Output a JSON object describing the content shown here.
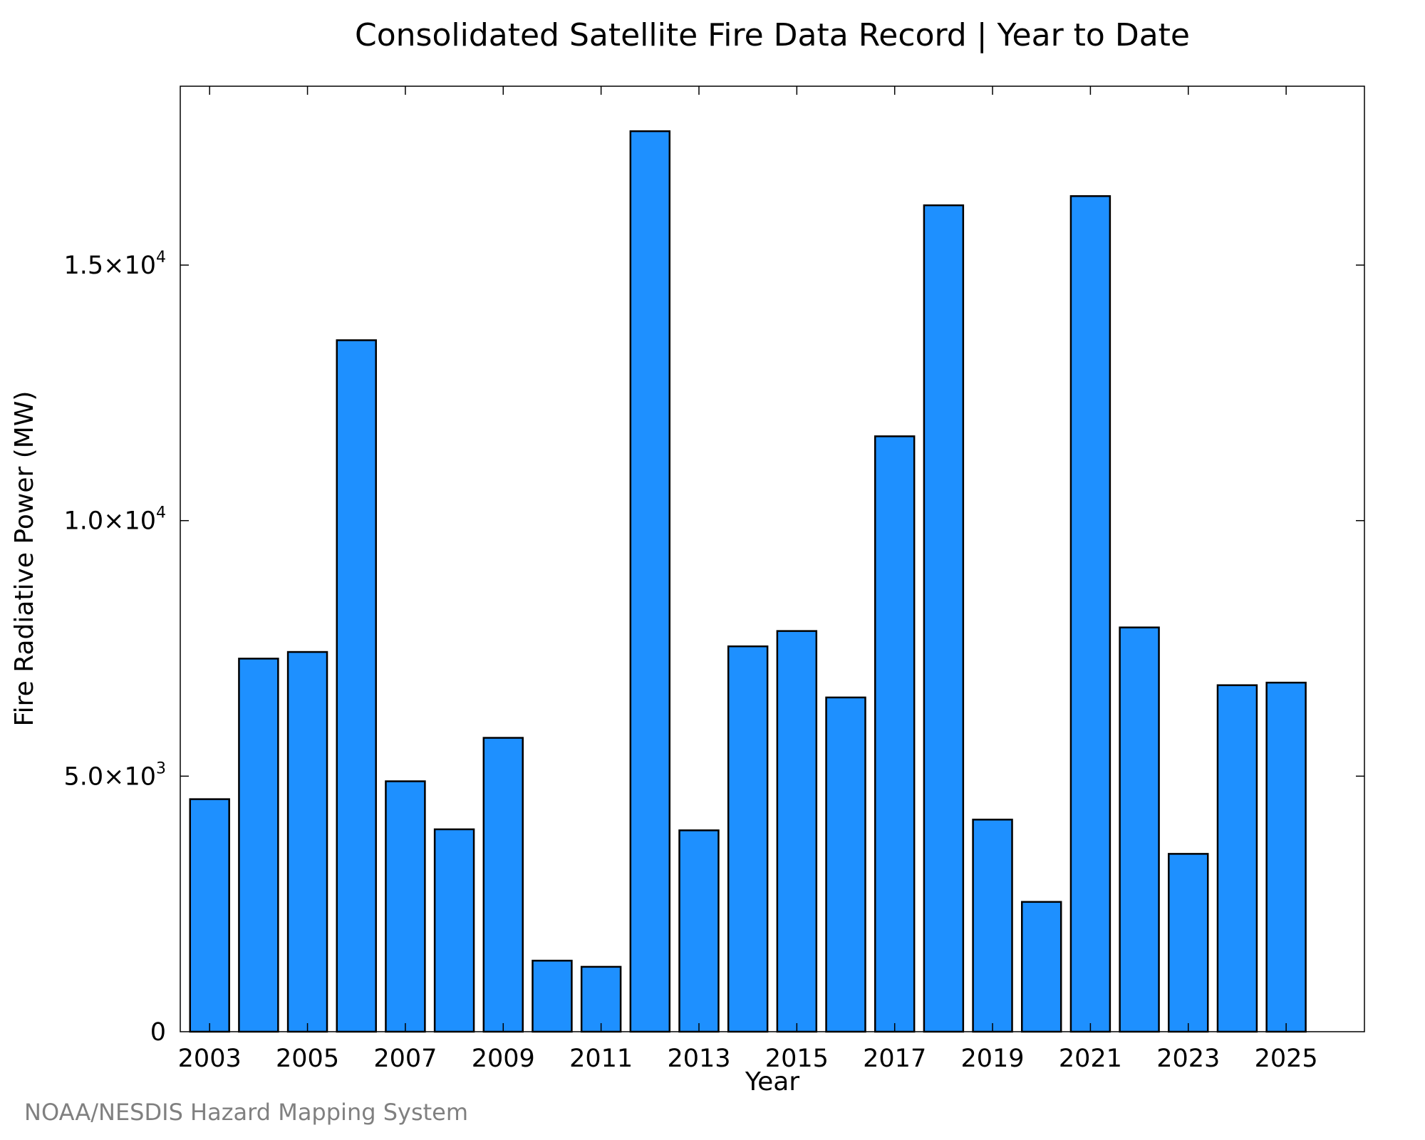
{
  "chart_data": {
    "type": "bar",
    "title": "Consolidated Satellite Fire Data Record | Year to Date",
    "xlabel": "Year",
    "ylabel": "Fire Radiative Power (MW)",
    "categories": [
      "2003",
      "2004",
      "2005",
      "2006",
      "2007",
      "2008",
      "2009",
      "2010",
      "2011",
      "2012",
      "2013",
      "2014",
      "2015",
      "2016",
      "2017",
      "2018",
      "2019",
      "2020",
      "2021",
      "2022",
      "2023",
      "2024",
      "2025"
    ],
    "values": [
      4550,
      7300,
      7430,
      13530,
      4900,
      3960,
      5750,
      1390,
      1270,
      17620,
      3940,
      7540,
      7840,
      6540,
      11650,
      16170,
      4150,
      2540,
      16350,
      7910,
      3480,
      6780,
      6830
    ],
    "x_tick_labels": [
      "2003",
      "2005",
      "2007",
      "2009",
      "2011",
      "2013",
      "2015",
      "2017",
      "2019",
      "2021",
      "2023",
      "2025"
    ],
    "y_ticks": [
      {
        "value": 0,
        "mantissa": "0",
        "exponent": ""
      },
      {
        "value": 5000,
        "mantissa": "5.0×10",
        "exponent": "3"
      },
      {
        "value": 10000,
        "mantissa": "1.0×10",
        "exponent": "4"
      },
      {
        "value": 15000,
        "mantissa": "1.5×10",
        "exponent": "4"
      }
    ],
    "ylim": [
      0,
      18500
    ],
    "xlim": [
      2002.4,
      2026.6
    ],
    "grid": false,
    "legend": "none",
    "bar_color": "#1e90ff",
    "edge_color": "#000000"
  },
  "credit": "NOAA/NESDIS Hazard Mapping System"
}
